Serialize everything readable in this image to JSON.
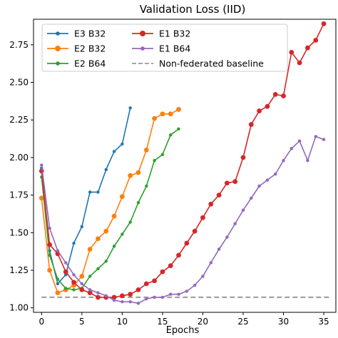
{
  "chart_data": {
    "type": "line",
    "title": "Validation Loss (IID)",
    "xlabel": "Epochs",
    "ylabel": "",
    "xlim": [
      -1,
      36.5
    ],
    "ylim": [
      0.97,
      2.92
    ],
    "xticks": [
      0,
      5,
      10,
      15,
      20,
      25,
      30,
      35
    ],
    "xtick_labels": [
      "0",
      "5",
      "10",
      "15",
      "20",
      "25",
      "30",
      "35"
    ],
    "yticks": [
      1.0,
      1.25,
      1.5,
      1.75,
      2.0,
      2.25,
      2.5,
      2.75
    ],
    "ytick_labels": [
      "1.00",
      "1.25",
      "1.50",
      "1.75",
      "2.00",
      "2.25",
      "2.50",
      "2.75"
    ],
    "legend_position": "top-left",
    "grid": false,
    "series": [
      {
        "name": "E3 B32",
        "color": "#1f77b4",
        "marker_size": 2.2,
        "x": [
          0,
          1,
          2,
          3,
          4,
          5,
          6,
          7,
          8,
          9,
          10,
          11
        ],
        "y": [
          1.93,
          1.38,
          1.16,
          1.22,
          1.43,
          1.54,
          1.77,
          1.77,
          1.92,
          2.04,
          2.09,
          2.33
        ]
      },
      {
        "name": "E2 B32",
        "color": "#ff7f0e",
        "marker_size": 3.4,
        "x": [
          0,
          1,
          2,
          3,
          4,
          5,
          6,
          7,
          8,
          9,
          10,
          11,
          12,
          13,
          14,
          15,
          16,
          17
        ],
        "y": [
          1.73,
          1.25,
          1.1,
          1.12,
          1.15,
          1.21,
          1.39,
          1.46,
          1.51,
          1.61,
          1.74,
          1.88,
          1.9,
          2.05,
          2.26,
          2.29,
          2.29,
          2.32
        ]
      },
      {
        "name": "E2 B64",
        "color": "#2ca02c",
        "marker_size": 2.2,
        "x": [
          0,
          1,
          2,
          3,
          4,
          5,
          6,
          7,
          8,
          9,
          10,
          11,
          12,
          13,
          14,
          15,
          16,
          17
        ],
        "y": [
          1.87,
          1.35,
          1.19,
          1.13,
          1.12,
          1.13,
          1.21,
          1.26,
          1.31,
          1.41,
          1.49,
          1.57,
          1.7,
          1.81,
          1.98,
          2.02,
          2.15,
          2.19
        ]
      },
      {
        "name": "E1 B32",
        "color": "#d62728",
        "marker_size": 3.4,
        "x": [
          0,
          1,
          2,
          3,
          4,
          5,
          6,
          7,
          8,
          9,
          10,
          11,
          12,
          13,
          14,
          15,
          16,
          17,
          18,
          19,
          20,
          21,
          22,
          23,
          24,
          25,
          26,
          27,
          28,
          29,
          30,
          31,
          32,
          33,
          34,
          35
        ],
        "y": [
          1.91,
          1.42,
          1.36,
          1.24,
          1.17,
          1.12,
          1.1,
          1.07,
          1.07,
          1.07,
          1.08,
          1.09,
          1.12,
          1.16,
          1.18,
          1.24,
          1.28,
          1.35,
          1.43,
          1.51,
          1.6,
          1.69,
          1.75,
          1.83,
          1.84,
          2.0,
          2.22,
          2.31,
          2.34,
          2.42,
          2.41,
          2.7,
          2.63,
          2.73,
          2.78,
          2.89
        ]
      },
      {
        "name": "E1 B64",
        "color": "#9467bd",
        "marker_size": 2.2,
        "x": [
          0,
          1,
          2,
          3,
          4,
          5,
          6,
          7,
          8,
          9,
          10,
          11,
          12,
          13,
          14,
          15,
          16,
          17,
          18,
          19,
          20,
          21,
          22,
          23,
          24,
          25,
          26,
          27,
          28,
          29,
          30,
          31,
          32,
          33,
          34,
          35
        ],
        "y": [
          1.95,
          1.53,
          1.38,
          1.3,
          1.22,
          1.16,
          1.12,
          1.1,
          1.08,
          1.05,
          1.04,
          1.04,
          1.03,
          1.06,
          1.07,
          1.07,
          1.09,
          1.09,
          1.11,
          1.15,
          1.21,
          1.3,
          1.39,
          1.47,
          1.56,
          1.65,
          1.73,
          1.81,
          1.85,
          1.89,
          1.98,
          2.06,
          2.11,
          1.98,
          2.14,
          2.12
        ]
      }
    ],
    "baseline": {
      "name": "Non-federated baseline",
      "color": "#999999",
      "y": 1.07
    }
  }
}
